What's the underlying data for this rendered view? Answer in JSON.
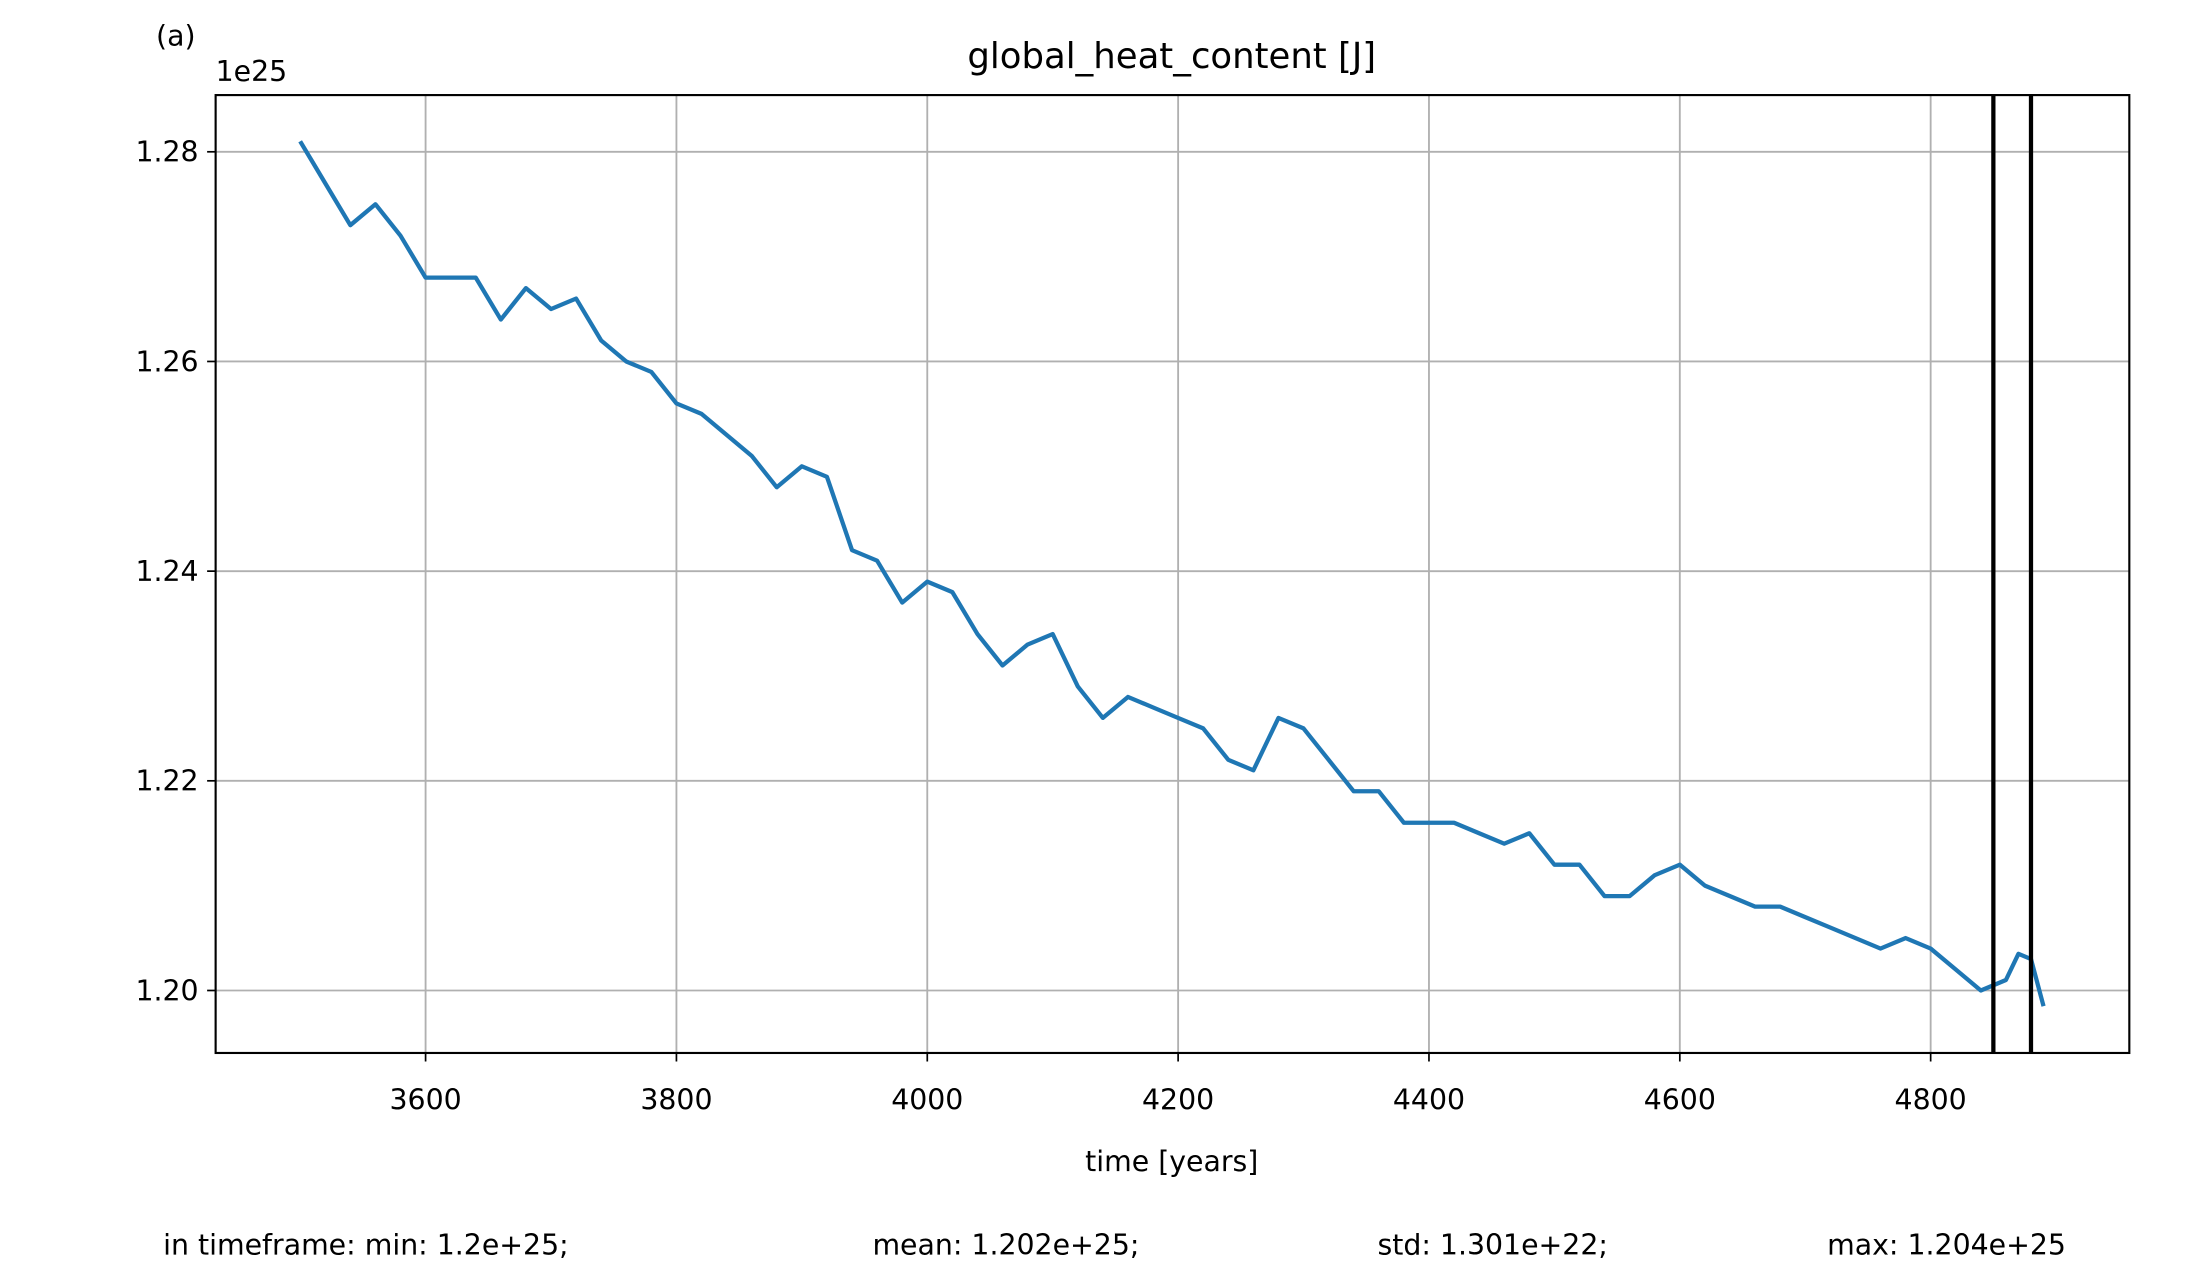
{
  "chart_data": {
    "type": "line",
    "panel_label": "(a)",
    "title": "global_heat_content [J]",
    "x_label": "time [years]",
    "y_offset_label": "1e25",
    "x": [
      3500,
      3510,
      3520,
      3540,
      3560,
      3580,
      3600,
      3620,
      3640,
      3660,
      3680,
      3700,
      3720,
      3740,
      3760,
      3780,
      3800,
      3820,
      3840,
      3860,
      3880,
      3900,
      3920,
      3940,
      3960,
      3980,
      4000,
      4020,
      4040,
      4060,
      4080,
      4100,
      4120,
      4140,
      4160,
      4180,
      4200,
      4220,
      4240,
      4260,
      4280,
      4300,
      4320,
      4340,
      4360,
      4380,
      4400,
      4420,
      4440,
      4460,
      4480,
      4500,
      4520,
      4540,
      4560,
      4580,
      4600,
      4620,
      4640,
      4660,
      4680,
      4700,
      4720,
      4740,
      4760,
      4780,
      4800,
      4820,
      4840,
      4860,
      4870,
      4880,
      4890
    ],
    "series": [
      {
        "name": "global_heat_content",
        "color": "#1f77b4",
        "values": [
          1.281,
          1.279,
          1.277,
          1.273,
          1.275,
          1.272,
          1.268,
          1.268,
          1.268,
          1.264,
          1.267,
          1.265,
          1.266,
          1.262,
          1.26,
          1.259,
          1.256,
          1.255,
          1.253,
          1.251,
          1.248,
          1.25,
          1.249,
          1.242,
          1.241,
          1.237,
          1.239,
          1.238,
          1.234,
          1.231,
          1.233,
          1.234,
          1.229,
          1.226,
          1.228,
          1.227,
          1.226,
          1.225,
          1.222,
          1.221,
          1.226,
          1.225,
          1.222,
          1.219,
          1.219,
          1.216,
          1.216,
          1.216,
          1.215,
          1.214,
          1.215,
          1.212,
          1.212,
          1.209,
          1.209,
          1.211,
          1.212,
          1.21,
          1.209,
          1.208,
          1.208,
          1.207,
          1.206,
          1.205,
          1.204,
          1.205,
          1.204,
          1.202,
          1.2,
          1.201,
          1.2035,
          1.203,
          1.1985
        ]
      }
    ],
    "vlines": [
      4850,
      4880
    ],
    "vline_color": "#000000",
    "xlim": [
      3432.6,
      4958.4
    ],
    "ylim": [
      1.19404,
      1.28541
    ],
    "xticks": [
      3600,
      3800,
      4000,
      4200,
      4400,
      4600,
      4800
    ],
    "yticks": [
      {
        "value": 1.2,
        "label": "1.20"
      },
      1.22,
      1.24,
      1.26,
      1.28
    ],
    "grid": true,
    "footer": [
      "in timeframe: min: 1.2e+25;",
      "mean: 1.202e+25;",
      "std: 1.301e+22;",
      "max: 1.204e+25"
    ]
  }
}
